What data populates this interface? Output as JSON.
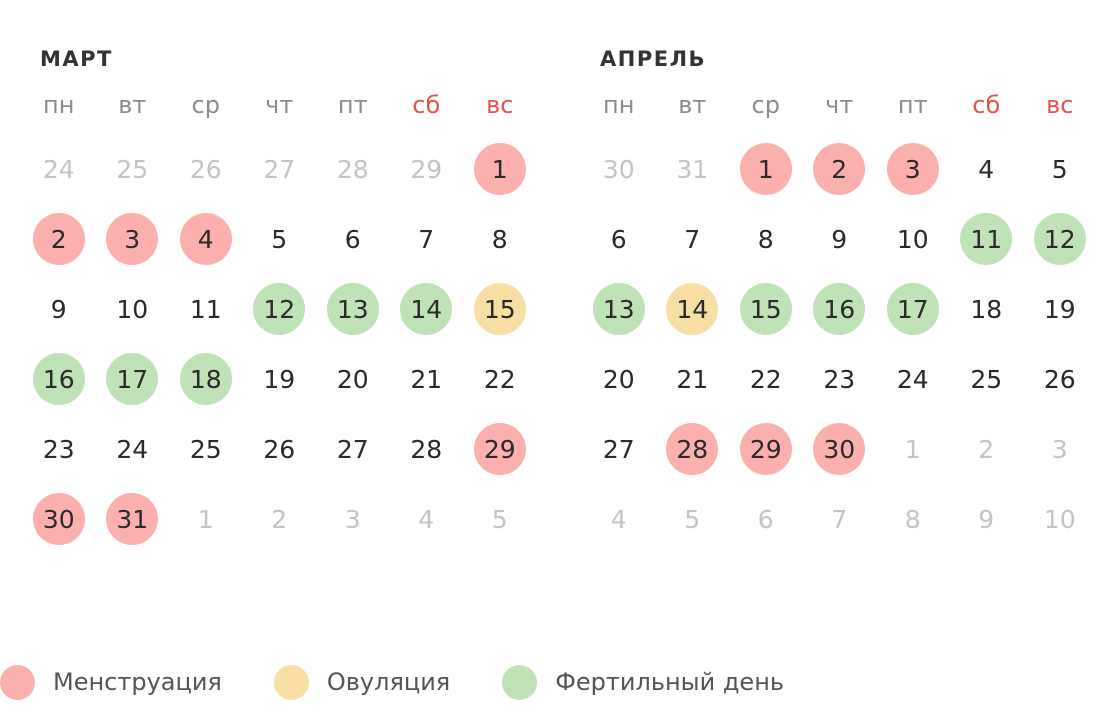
{
  "months": [
    {
      "title": "МАРТ",
      "weekdays": [
        "пн",
        "вт",
        "ср",
        "чт",
        "пт",
        "сб",
        "вс"
      ],
      "weeks": [
        [
          {
            "d": "24",
            "muted": true
          },
          {
            "d": "25",
            "muted": true
          },
          {
            "d": "26",
            "muted": true
          },
          {
            "d": "27",
            "muted": true
          },
          {
            "d": "28",
            "muted": true
          },
          {
            "d": "29",
            "muted": true
          },
          {
            "d": "1",
            "type": "menstruation"
          }
        ],
        [
          {
            "d": "2",
            "type": "menstruation"
          },
          {
            "d": "3",
            "type": "menstruation"
          },
          {
            "d": "4",
            "type": "menstruation"
          },
          {
            "d": "5"
          },
          {
            "d": "6"
          },
          {
            "d": "7"
          },
          {
            "d": "8"
          }
        ],
        [
          {
            "d": "9"
          },
          {
            "d": "10"
          },
          {
            "d": "11"
          },
          {
            "d": "12",
            "type": "fertile"
          },
          {
            "d": "13",
            "type": "fertile"
          },
          {
            "d": "14",
            "type": "fertile"
          },
          {
            "d": "15",
            "type": "ovulation"
          }
        ],
        [
          {
            "d": "16",
            "type": "fertile"
          },
          {
            "d": "17",
            "type": "fertile"
          },
          {
            "d": "18",
            "type": "fertile"
          },
          {
            "d": "19"
          },
          {
            "d": "20"
          },
          {
            "d": "21"
          },
          {
            "d": "22"
          }
        ],
        [
          {
            "d": "23"
          },
          {
            "d": "24"
          },
          {
            "d": "25"
          },
          {
            "d": "26"
          },
          {
            "d": "27"
          },
          {
            "d": "28"
          },
          {
            "d": "29",
            "type": "menstruation"
          }
        ],
        [
          {
            "d": "30",
            "type": "menstruation"
          },
          {
            "d": "31",
            "type": "menstruation"
          },
          {
            "d": "1",
            "muted": true
          },
          {
            "d": "2",
            "muted": true
          },
          {
            "d": "3",
            "muted": true
          },
          {
            "d": "4",
            "muted": true
          },
          {
            "d": "5",
            "muted": true
          }
        ]
      ]
    },
    {
      "title": "АПРЕЛЬ",
      "weekdays": [
        "пн",
        "вт",
        "ср",
        "чт",
        "пт",
        "сб",
        "вс"
      ],
      "weeks": [
        [
          {
            "d": "30",
            "muted": true
          },
          {
            "d": "31",
            "muted": true
          },
          {
            "d": "1",
            "type": "menstruation"
          },
          {
            "d": "2",
            "type": "menstruation"
          },
          {
            "d": "3",
            "type": "menstruation"
          },
          {
            "d": "4"
          },
          {
            "d": "5"
          }
        ],
        [
          {
            "d": "6"
          },
          {
            "d": "7"
          },
          {
            "d": "8"
          },
          {
            "d": "9"
          },
          {
            "d": "10"
          },
          {
            "d": "11",
            "type": "fertile"
          },
          {
            "d": "12",
            "type": "fertile"
          }
        ],
        [
          {
            "d": "13",
            "type": "fertile"
          },
          {
            "d": "14",
            "type": "ovulation"
          },
          {
            "d": "15",
            "type": "fertile"
          },
          {
            "d": "16",
            "type": "fertile"
          },
          {
            "d": "17",
            "type": "fertile"
          },
          {
            "d": "18"
          },
          {
            "d": "19"
          }
        ],
        [
          {
            "d": "20"
          },
          {
            "d": "21"
          },
          {
            "d": "22"
          },
          {
            "d": "23"
          },
          {
            "d": "24"
          },
          {
            "d": "25"
          },
          {
            "d": "26"
          }
        ],
        [
          {
            "d": "27"
          },
          {
            "d": "28",
            "type": "menstruation"
          },
          {
            "d": "29",
            "type": "menstruation"
          },
          {
            "d": "30",
            "type": "menstruation"
          },
          {
            "d": "1",
            "muted": true
          },
          {
            "d": "2",
            "muted": true
          },
          {
            "d": "3",
            "muted": true
          }
        ],
        [
          {
            "d": "4",
            "muted": true
          },
          {
            "d": "5",
            "muted": true
          },
          {
            "d": "6",
            "muted": true
          },
          {
            "d": "7",
            "muted": true
          },
          {
            "d": "8",
            "muted": true
          },
          {
            "d": "9",
            "muted": true
          },
          {
            "d": "10",
            "muted": true
          }
        ]
      ]
    }
  ],
  "legend": [
    {
      "key": "menstruation",
      "label": "Менструация",
      "color": "#fbb0ae"
    },
    {
      "key": "ovulation",
      "label": "Овуляция",
      "color": "#f7dfa4"
    },
    {
      "key": "fertile",
      "label": "Фертильный день",
      "color": "#bfe2b6"
    }
  ],
  "colors": {
    "weekend": "#e5534b",
    "weekday": "#8c8c8c",
    "muted_day": "#c4c4c4",
    "day_text": "#2a2a2a"
  }
}
